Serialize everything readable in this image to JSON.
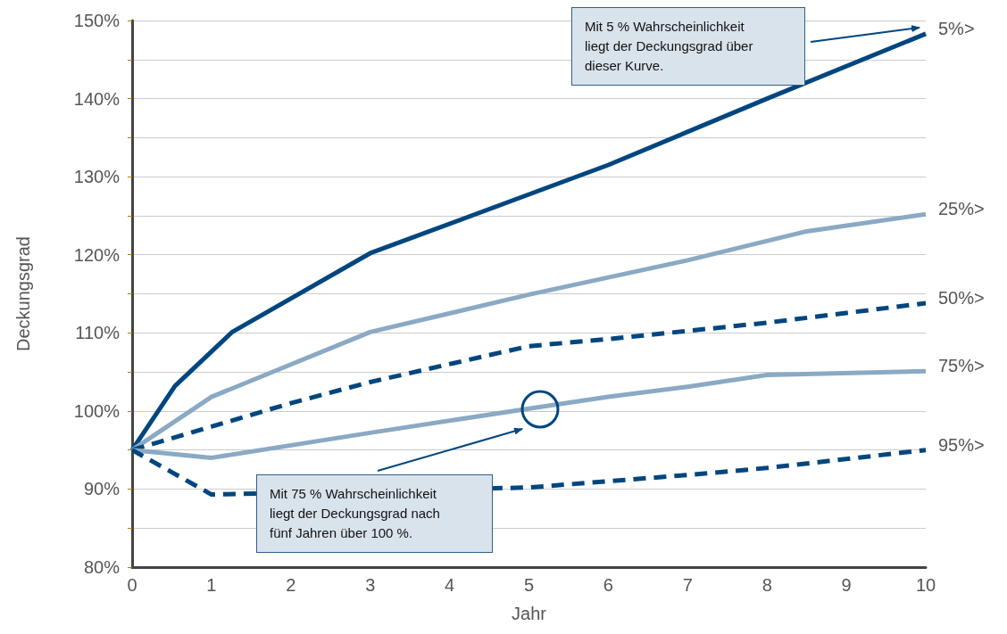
{
  "chart_data": {
    "type": "line",
    "xlabel": "Jahr",
    "ylabel": "Deckungsgrad",
    "xlim": [
      0,
      10
    ],
    "xticks": [
      0,
      1,
      2,
      3,
      4,
      5,
      6,
      7,
      8,
      9,
      10
    ],
    "ylim": [
      80,
      150
    ],
    "yticks": [
      {
        "value": 80,
        "label": "80%"
      },
      {
        "value": 85,
        "label": null
      },
      {
        "value": 90,
        "label": "90%"
      },
      {
        "value": 95,
        "label": null
      },
      {
        "value": 100,
        "label": "100%"
      },
      {
        "value": 105,
        "label": null
      },
      {
        "value": 110,
        "label": "110%"
      },
      {
        "value": 115,
        "label": null
      },
      {
        "value": 120,
        "label": "120%"
      },
      {
        "value": 125,
        "label": null
      },
      {
        "value": 130,
        "label": "130%"
      },
      {
        "value": 135,
        "label": null
      },
      {
        "value": 140,
        "label": "140%"
      },
      {
        "value": 145,
        "label": null
      },
      {
        "value": 150,
        "label": "150%"
      }
    ],
    "grid": "y",
    "legend": "right",
    "marker": "none",
    "series": [
      {
        "name": "5%>",
        "color": "#00467f",
        "line_style": "solid",
        "x": [
          0,
          0.54,
          1.26,
          3,
          6,
          8,
          10
        ],
        "values": [
          95,
          103.2,
          110.1,
          120.2,
          131.5,
          140,
          148.3
        ]
      },
      {
        "name": "25%>",
        "color": "#8aa9c4",
        "line_style": "solid",
        "x": [
          0,
          1,
          3,
          5,
          7,
          8.5,
          10
        ],
        "values": [
          95,
          101.8,
          110.1,
          114.9,
          119.3,
          123,
          125.2
        ]
      },
      {
        "name": "50%>",
        "color": "#00467f",
        "line_style": "dashed",
        "x": [
          0,
          1,
          2,
          3,
          5,
          6,
          8,
          10
        ],
        "values": [
          95,
          98,
          101,
          103.7,
          108.3,
          109.2,
          111.3,
          113.8
        ]
      },
      {
        "name": "75%>",
        "color": "#8aa9c4",
        "line_style": "solid",
        "x": [
          0,
          1,
          3,
          5,
          6,
          7,
          8,
          10
        ],
        "values": [
          95,
          94,
          97.2,
          100.3,
          101.8,
          103.1,
          104.6,
          105.1
        ]
      },
      {
        "name": "95%>",
        "color": "#00467f",
        "line_style": "dashed",
        "x": [
          0,
          1,
          5,
          6,
          7,
          8,
          10
        ],
        "values": [
          95,
          89.3,
          90.2,
          91,
          91.8,
          92.7,
          95
        ]
      }
    ],
    "annotations": [
      "Mit 5 % Wahrscheinlichkeit\nliegt der Deckungsgrad über\ndieser Kurve.",
      "Mit 75 % Wahrscheinlichkeit\nliegt der Deckungsgrad nach\nfünf Jahren über 100 %."
    ]
  }
}
